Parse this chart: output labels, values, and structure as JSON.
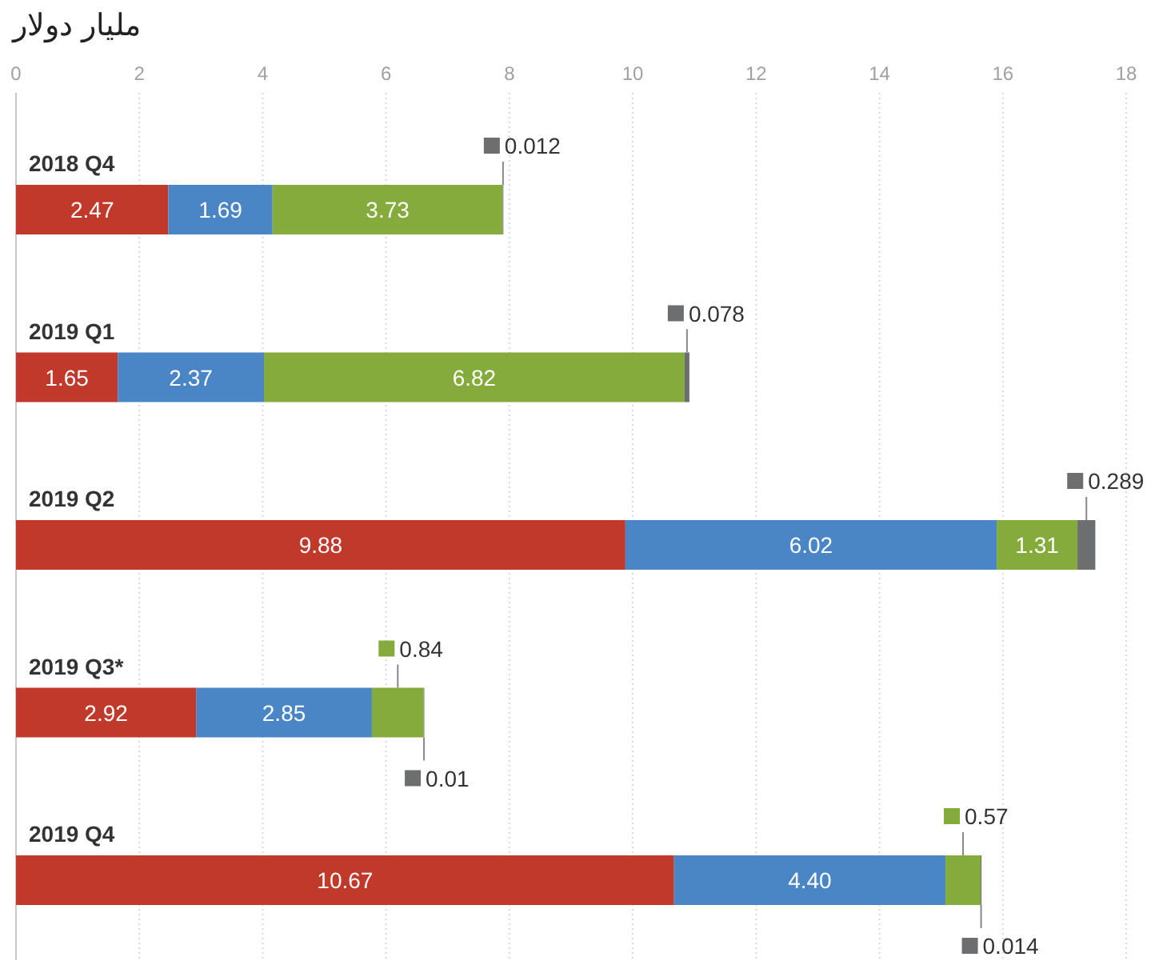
{
  "chart_data": {
    "type": "bar",
    "orientation": "horizontal",
    "stacked": true,
    "xlabel": "مليار دولار",
    "categories": [
      "2018 Q4",
      "2019 Q1",
      "2019 Q2",
      "2019 Q3*",
      "2019 Q4"
    ],
    "series": [
      {
        "color": "#c0392b",
        "values": [
          2.47,
          1.65,
          9.88,
          2.92,
          10.67
        ],
        "value_labels": [
          "2.47",
          "1.65",
          "9.88",
          "2.92",
          "10.67"
        ]
      },
      {
        "color": "#4a86c5",
        "values": [
          1.69,
          2.37,
          6.02,
          2.85,
          4.4
        ],
        "value_labels": [
          "1.69",
          "2.37",
          "6.02",
          "2.85",
          "4.40"
        ]
      },
      {
        "color": "#84ab3c",
        "values": [
          3.73,
          6.82,
          1.31,
          0.84,
          0.57
        ],
        "value_labels": [
          "3.73",
          "6.82",
          "1.31",
          "0.84",
          "0.57"
        ]
      },
      {
        "color": "#6d6e70",
        "values": [
          0.012,
          0.078,
          0.289,
          0.01,
          0.014
        ],
        "value_labels": [
          "0.012",
          "0.078",
          "0.289",
          "0.01",
          "0.014"
        ]
      }
    ],
    "xlim": [
      0,
      18
    ],
    "xticks": [
      0,
      2,
      4,
      6,
      8,
      10,
      12,
      14,
      16,
      18
    ],
    "grid": "x"
  }
}
